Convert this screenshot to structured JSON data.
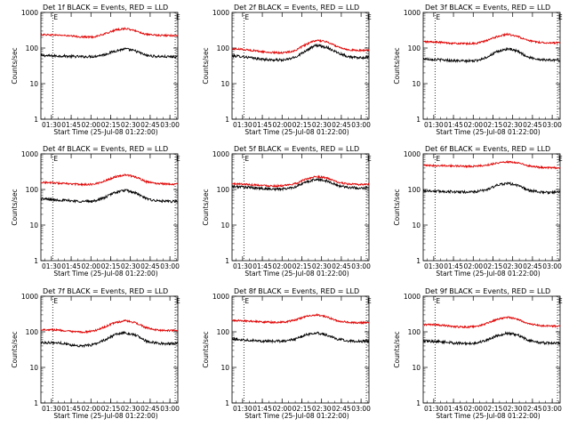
{
  "figure": {
    "ylabel": "Counts/sec",
    "xlabel": "Start Time (25-Jul-08 01:22:00)",
    "y_ticks": [
      "1",
      "10",
      "100",
      "1000"
    ],
    "x_ticks": [
      "01:30",
      "01:45",
      "02:00",
      "02:15",
      "02:30",
      "02:45",
      "03:00"
    ],
    "marker_label": "E",
    "colors": {
      "events": "#000000",
      "lld": "#e00000",
      "axes": "#000000",
      "background": "#ffffff"
    }
  },
  "chart_data": [
    {
      "type": "line",
      "title": "Det 1f BLACK = Events, RED = LLD",
      "xlabel": "Start Time (25-Jul-08 01:22:00)",
      "ylabel": "Counts/sec",
      "x_unit": "minutes after 01:22:00",
      "x_range": [
        0,
        104
      ],
      "ylim": [
        1,
        1000
      ],
      "y_scale": "log",
      "markers_x": [
        9,
        102
      ],
      "x": [
        0,
        8,
        16,
        24,
        32,
        40,
        48,
        56,
        64,
        72,
        80,
        88,
        96,
        104
      ],
      "series": [
        {
          "name": "BLACK = Events",
          "color": "#000000",
          "values": [
            62,
            60,
            60,
            58,
            57,
            58,
            65,
            82,
            95,
            82,
            62,
            58,
            57,
            57
          ]
        },
        {
          "name": "RED = LLD",
          "color": "#e00000",
          "values": [
            240,
            235,
            228,
            215,
            205,
            205,
            245,
            315,
            355,
            305,
            240,
            228,
            225,
            225
          ]
        }
      ]
    },
    {
      "type": "line",
      "title": "Det 2f BLACK = Events, RED = LLD",
      "xlabel": "Start Time (25-Jul-08 01:22:00)",
      "ylabel": "Counts/sec",
      "x_unit": "minutes after 01:22:00",
      "x_range": [
        0,
        104
      ],
      "ylim": [
        1,
        1000
      ],
      "y_scale": "log",
      "markers_x": [
        9,
        102
      ],
      "x": [
        0,
        8,
        16,
        24,
        32,
        40,
        48,
        56,
        64,
        72,
        80,
        88,
        96,
        104
      ],
      "series": [
        {
          "name": "BLACK = Events",
          "color": "#000000",
          "values": [
            60,
            58,
            52,
            48,
            46,
            46,
            55,
            85,
            120,
            105,
            75,
            58,
            52,
            55
          ]
        },
        {
          "name": "RED = LLD",
          "color": "#e00000",
          "values": [
            95,
            92,
            85,
            78,
            74,
            74,
            85,
            125,
            165,
            150,
            110,
            90,
            85,
            88
          ]
        }
      ]
    },
    {
      "type": "line",
      "title": "Det 3f BLACK = Events, RED = LLD",
      "xlabel": "Start Time (25-Jul-08 01:22:00)",
      "ylabel": "Counts/sec",
      "x_unit": "minutes after 01:22:00",
      "x_range": [
        0,
        104
      ],
      "ylim": [
        1,
        1000
      ],
      "y_scale": "log",
      "markers_x": [
        9,
        102
      ],
      "x": [
        0,
        8,
        16,
        24,
        32,
        40,
        48,
        56,
        64,
        72,
        80,
        88,
        96,
        104
      ],
      "series": [
        {
          "name": "BLACK = Events",
          "color": "#000000",
          "values": [
            50,
            48,
            46,
            44,
            43,
            44,
            55,
            78,
            95,
            80,
            55,
            48,
            46,
            46
          ]
        },
        {
          "name": "RED = LLD",
          "color": "#e00000",
          "values": [
            150,
            148,
            142,
            135,
            132,
            135,
            160,
            210,
            245,
            210,
            160,
            145,
            140,
            140
          ]
        }
      ]
    },
    {
      "type": "line",
      "title": "Det 4f BLACK = Events, RED = LLD",
      "xlabel": "Start Time (25-Jul-08 01:22:00)",
      "ylabel": "Counts/sec",
      "x_unit": "minutes after 01:22:00",
      "x_range": [
        0,
        104
      ],
      "ylim": [
        1,
        1000
      ],
      "y_scale": "log",
      "markers_x": [
        9,
        102
      ],
      "x": [
        0,
        8,
        16,
        24,
        32,
        40,
        48,
        56,
        64,
        72,
        80,
        88,
        96,
        104
      ],
      "series": [
        {
          "name": "BLACK = Events",
          "color": "#000000",
          "values": [
            55,
            52,
            50,
            48,
            46,
            47,
            58,
            82,
            95,
            80,
            55,
            48,
            46,
            46
          ]
        },
        {
          "name": "RED = LLD",
          "color": "#e00000",
          "values": [
            160,
            155,
            148,
            142,
            138,
            140,
            170,
            225,
            260,
            225,
            165,
            148,
            142,
            142
          ]
        }
      ]
    },
    {
      "type": "line",
      "title": "Det 5f BLACK = Events, RED = LLD",
      "xlabel": "Start Time (25-Jul-08 01:22:00)",
      "ylabel": "Counts/sec",
      "x_unit": "minutes after 01:22:00",
      "x_range": [
        0,
        104
      ],
      "ylim": [
        1,
        1000
      ],
      "y_scale": "log",
      "markers_x": [
        9,
        102
      ],
      "x": [
        0,
        8,
        16,
        24,
        32,
        40,
        48,
        56,
        64,
        72,
        80,
        88,
        96,
        104
      ],
      "series": [
        {
          "name": "BLACK = Events",
          "color": "#000000",
          "values": [
            120,
            118,
            112,
            106,
            102,
            104,
            118,
            160,
            195,
            175,
            130,
            115,
            110,
            112
          ]
        },
        {
          "name": "RED = LLD",
          "color": "#e00000",
          "values": [
            145,
            142,
            136,
            130,
            126,
            128,
            145,
            195,
            235,
            210,
            160,
            142,
            138,
            140
          ]
        }
      ]
    },
    {
      "type": "line",
      "title": "Det 6f BLACK = Events, RED = LLD",
      "xlabel": "Start Time (25-Jul-08 01:22:00)",
      "ylabel": "Counts/sec",
      "x_unit": "minutes after 01:22:00",
      "x_range": [
        0,
        104
      ],
      "ylim": [
        1,
        1000
      ],
      "y_scale": "log",
      "markers_x": [
        9,
        102
      ],
      "x": [
        0,
        8,
        16,
        24,
        32,
        40,
        48,
        56,
        64,
        72,
        80,
        88,
        96,
        104
      ],
      "series": [
        {
          "name": "BLACK = Events",
          "color": "#000000",
          "values": [
            92,
            90,
            88,
            86,
            85,
            86,
            98,
            130,
            150,
            130,
            95,
            85,
            82,
            84
          ]
        },
        {
          "name": "RED = LLD",
          "color": "#e00000",
          "values": [
            470,
            470,
            470,
            460,
            450,
            450,
            480,
            560,
            600,
            560,
            460,
            420,
            410,
            410
          ]
        }
      ]
    },
    {
      "type": "line",
      "title": "Det 7f BLACK = Events, RED = LLD",
      "xlabel": "Start Time (25-Jul-08 01:22:00)",
      "ylabel": "Counts/sec",
      "x_unit": "minutes after 01:22:00",
      "x_range": [
        0,
        104
      ],
      "ylim": [
        1,
        1000
      ],
      "y_scale": "log",
      "markers_x": [
        9,
        102
      ],
      "x": [
        0,
        8,
        16,
        24,
        32,
        40,
        48,
        56,
        64,
        72,
        80,
        88,
        96,
        104
      ],
      "series": [
        {
          "name": "BLACK = Events",
          "color": "#000000",
          "values": [
            50,
            50,
            48,
            42,
            40,
            44,
            58,
            82,
            95,
            80,
            55,
            48,
            46,
            48
          ]
        },
        {
          "name": "RED = LLD",
          "color": "#e00000",
          "values": [
            115,
            115,
            110,
            100,
            98,
            105,
            135,
            180,
            205,
            180,
            130,
            112,
            108,
            110
          ]
        }
      ]
    },
    {
      "type": "line",
      "title": "Det 8f BLACK = Events, RED = LLD",
      "xlabel": "Start Time (25-Jul-08 01:22:00)",
      "ylabel": "Counts/sec",
      "x_unit": "minutes after 01:22:00",
      "x_range": [
        0,
        104
      ],
      "ylim": [
        1,
        1000
      ],
      "y_scale": "log",
      "markers_x": [
        9,
        102
      ],
      "x": [
        0,
        8,
        16,
        24,
        32,
        40,
        48,
        56,
        64,
        72,
        80,
        88,
        96,
        104
      ],
      "series": [
        {
          "name": "BLACK = Events",
          "color": "#000000",
          "values": [
            62,
            60,
            58,
            55,
            54,
            55,
            62,
            82,
            95,
            82,
            62,
            56,
            54,
            55
          ]
        },
        {
          "name": "RED = LLD",
          "color": "#e00000",
          "values": [
            210,
            205,
            198,
            190,
            185,
            188,
            215,
            270,
            300,
            260,
            205,
            185,
            180,
            182
          ]
        }
      ]
    },
    {
      "type": "line",
      "title": "Det 9f BLACK = Events, RED = LLD",
      "xlabel": "Start Time (25-Jul-08 01:22:00)",
      "ylabel": "Counts/sec",
      "x_unit": "minutes after 01:22:00",
      "x_range": [
        0,
        104
      ],
      "ylim": [
        1,
        1000
      ],
      "y_scale": "log",
      "markers_x": [
        9,
        102
      ],
      "x": [
        0,
        8,
        16,
        24,
        32,
        40,
        48,
        56,
        64,
        72,
        80,
        88,
        96,
        104
      ],
      "series": [
        {
          "name": "BLACK = Events",
          "color": "#000000",
          "values": [
            55,
            54,
            52,
            48,
            47,
            48,
            58,
            78,
            92,
            80,
            58,
            50,
            48,
            48
          ]
        },
        {
          "name": "RED = LLD",
          "color": "#e00000",
          "values": [
            160,
            158,
            150,
            140,
            136,
            140,
            170,
            225,
            255,
            225,
            170,
            150,
            145,
            145
          ]
        }
      ]
    }
  ]
}
